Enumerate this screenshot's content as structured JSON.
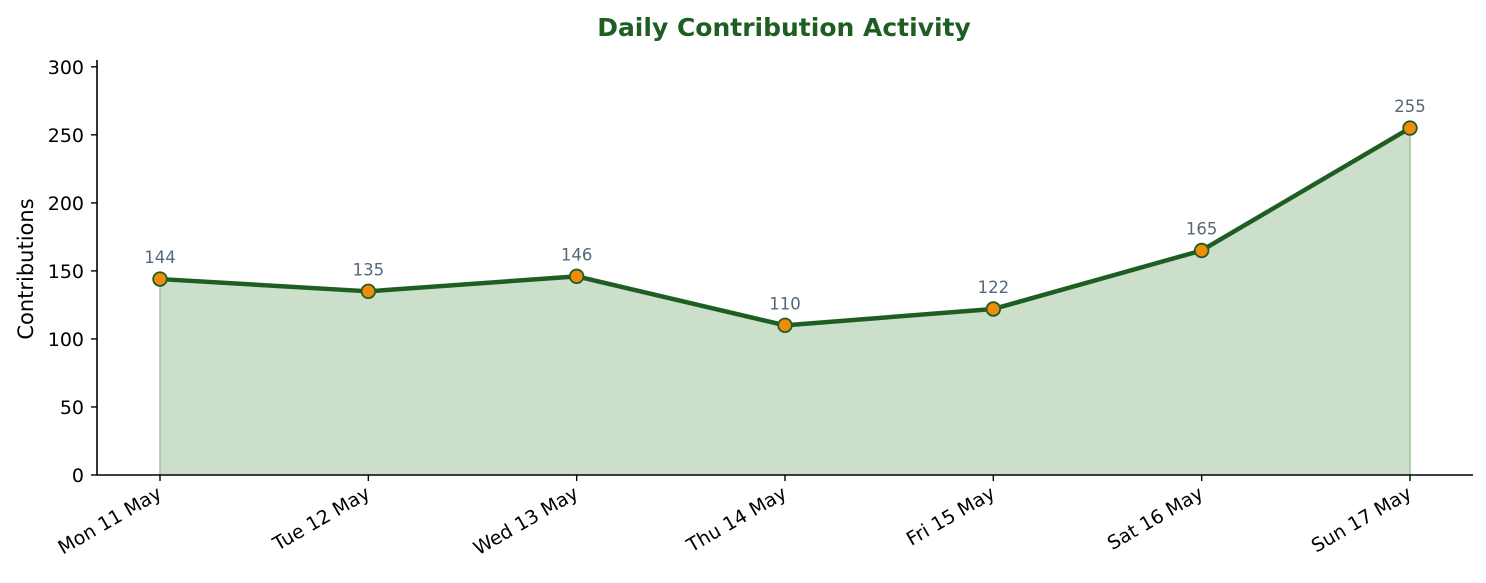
{
  "chart_data": {
    "type": "area",
    "title": "Daily Contribution Activity",
    "xlabel": "",
    "ylabel": "Contributions",
    "categories": [
      "Mon 11 May",
      "Tue 12 May",
      "Wed 13 May",
      "Thu 14 May",
      "Fri 15 May",
      "Sat 16 May",
      "Sun 17 May"
    ],
    "series": [
      {
        "values": [
          144,
          135,
          146,
          110,
          122,
          165,
          255
        ]
      }
    ],
    "ylim": [
      0,
      305
    ],
    "yticks": [
      0,
      50,
      100,
      150,
      200,
      250,
      300
    ],
    "grid": false,
    "legend": "none",
    "colors": {
      "title": "#1f5e23",
      "line": "#1f5e23",
      "fill": "#cbdfcb",
      "fill_edge": "#9fc59f",
      "marker_fill": "#f08c0a",
      "marker_edge": "#1f5e23",
      "data_label": "#546877"
    }
  }
}
